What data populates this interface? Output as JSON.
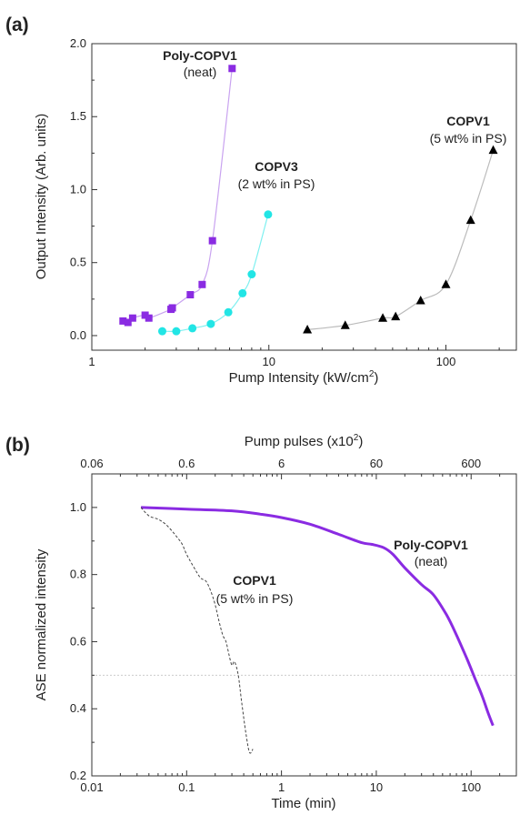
{
  "chart_data": [
    {
      "type": "scatter",
      "panel_label": "(a)",
      "xlabel": "Pump Intensity (kW/cm",
      "xlabel_sup": "2",
      "xlabel_close": ")",
      "ylabel": "Output Intensity (Arb. units)",
      "xscale": "log",
      "xlim": [
        1,
        250
      ],
      "ylim": [
        -0.1,
        2.0
      ],
      "x_ticks": [
        1,
        10,
        100
      ],
      "x_tick_labels": [
        "1",
        "10",
        "100"
      ],
      "y_ticks": [
        0.0,
        0.5,
        1.0,
        1.5,
        2.0
      ],
      "y_tick_labels": [
        "0.0",
        "0.5",
        "1.0",
        "1.5",
        "2.0"
      ],
      "grid": false,
      "series": [
        {
          "name": "Poly-COPV1",
          "sub": "(neat)",
          "marker": "square",
          "color": "#8a2be2",
          "line_color": "#c9a3f0",
          "x": [
            1.5,
            1.6,
            1.7,
            2.0,
            2.1,
            2.8,
            2.85,
            3.6,
            4.2,
            4.8,
            6.2
          ],
          "y": [
            0.1,
            0.09,
            0.12,
            0.14,
            0.12,
            0.18,
            0.19,
            0.28,
            0.35,
            0.65,
            1.83
          ]
        },
        {
          "name": "COPV3",
          "sub": "(2 wt% in PS)",
          "marker": "circle",
          "color": "#22e5e5",
          "line_color": "#7ff0f0",
          "x": [
            2.5,
            3.0,
            3.7,
            4.7,
            5.9,
            7.1,
            8.0,
            9.9
          ],
          "y": [
            0.03,
            0.03,
            0.05,
            0.08,
            0.16,
            0.29,
            0.42,
            0.83
          ]
        },
        {
          "name": "COPV1",
          "sub": "(5 wt% in PS)",
          "marker": "triangle",
          "color": "#000000",
          "line_color": "#bbbbbb",
          "x": [
            16.5,
            27,
            44,
            52,
            72,
            100,
            138,
            185
          ],
          "y": [
            0.04,
            0.07,
            0.12,
            0.13,
            0.24,
            0.35,
            0.79,
            1.27
          ]
        }
      ]
    },
    {
      "type": "line",
      "panel_label": "(b)",
      "xlabel": "Time (min)",
      "ylabel": "ASE normalized intensity",
      "top_xlabel": "Pump pulses (x10",
      "top_xlabel_sup": "2",
      "top_xlabel_close": ")",
      "xscale": "log",
      "xlim": [
        0.01,
        300
      ],
      "ylim": [
        0.2,
        1.1
      ],
      "x_ticks": [
        0.01,
        0.1,
        1,
        10,
        100
      ],
      "x_tick_labels": [
        "0.01",
        "0.1",
        "1",
        "10",
        "100"
      ],
      "y_ticks": [
        0.2,
        0.4,
        0.6,
        0.8,
        1.0
      ],
      "y_tick_labels": [
        "0.2",
        "0.4",
        "0.6",
        "0.8",
        "1.0"
      ],
      "top_ticks": [
        0.06,
        0.6,
        6,
        60,
        600
      ],
      "top_tick_labels": [
        "0.06",
        "0.6",
        "6",
        "60",
        "600"
      ],
      "reference_line_y": 0.5,
      "grid": false,
      "series": [
        {
          "name": "Poly-COPV1",
          "sub": "(neat)",
          "color": "#8a2be2",
          "style": "solid",
          "x": [
            0.033,
            0.1,
            0.3,
            0.6,
            1,
            2,
            4,
            7,
            9,
            12,
            15,
            20,
            30,
            40,
            55,
            70,
            90,
            110,
            130,
            150,
            170
          ],
          "y": [
            1.0,
            0.995,
            0.99,
            0.98,
            0.97,
            0.95,
            0.92,
            0.895,
            0.89,
            0.88,
            0.86,
            0.82,
            0.77,
            0.74,
            0.68,
            0.62,
            0.55,
            0.49,
            0.44,
            0.39,
            0.35
          ]
        },
        {
          "name": "COPV1",
          "sub": "(5 wt% in PS)",
          "color": "#444444",
          "style": "dashed",
          "x": [
            0.033,
            0.04,
            0.05,
            0.06,
            0.07,
            0.08,
            0.09,
            0.1,
            0.12,
            0.14,
            0.16,
            0.18,
            0.2,
            0.22,
            0.24,
            0.26,
            0.28,
            0.3,
            0.32,
            0.35,
            0.38,
            0.42,
            0.46,
            0.5
          ],
          "y": [
            1.0,
            0.975,
            0.965,
            0.95,
            0.93,
            0.91,
            0.89,
            0.86,
            0.82,
            0.79,
            0.78,
            0.75,
            0.71,
            0.66,
            0.62,
            0.6,
            0.56,
            0.53,
            0.54,
            0.5,
            0.42,
            0.33,
            0.27,
            0.28
          ]
        }
      ]
    }
  ]
}
